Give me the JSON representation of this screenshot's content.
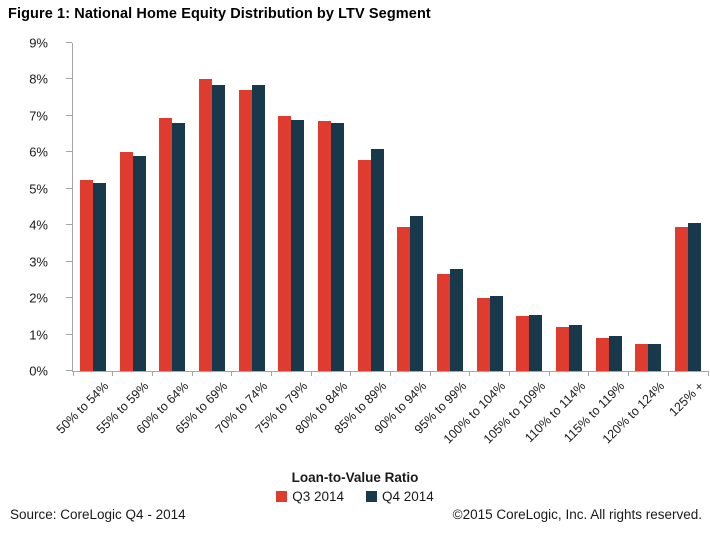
{
  "title": "Figure 1: National Home Equity Distribution by LTV Segment",
  "footer": {
    "source": "Source: CoreLogic Q4 - 2014",
    "copyright": "©2015 CoreLogic, Inc. All rights reserved."
  },
  "colors": {
    "axis": "#a6a6a6",
    "q3": "#e03b2f",
    "q4": "#17394b"
  },
  "chart_data": {
    "type": "bar",
    "title": "Figure 1: National Home Equity Distribution by LTV Segment",
    "xlabel": "Loan-to-Value Ratio",
    "ylabel": "",
    "ylim": [
      0,
      9
    ],
    "grid": false,
    "legend_position": "bottom",
    "y_tick_labels": [
      "0%",
      "1%",
      "2%",
      "3%",
      "4%",
      "5%",
      "6%",
      "7%",
      "8%",
      "9%"
    ],
    "categories": [
      "50% to 54%",
      "55% to 59%",
      "60% to 64%",
      "65% to 69%",
      "70% to 74%",
      "75% to 79%",
      "80% to 84%",
      "85% to 89%",
      "90% to 94%",
      "95% to 99%",
      "100% to 104%",
      "105% to 109%",
      "110% to 114%",
      "115% to 119%",
      "120% to 124%",
      "125% +"
    ],
    "series": [
      {
        "name": "Q3 2014",
        "color": "#e03b2f",
        "values": [
          5.25,
          6.0,
          6.95,
          8.0,
          7.7,
          7.0,
          6.85,
          5.8,
          3.95,
          2.65,
          2.0,
          1.5,
          1.2,
          0.9,
          0.75,
          3.95
        ]
      },
      {
        "name": "Q4 2014",
        "color": "#17394b",
        "values": [
          5.15,
          5.9,
          6.8,
          7.85,
          7.85,
          6.9,
          6.8,
          6.1,
          4.25,
          2.8,
          2.05,
          1.55,
          1.25,
          0.95,
          0.75,
          4.05
        ]
      }
    ]
  }
}
